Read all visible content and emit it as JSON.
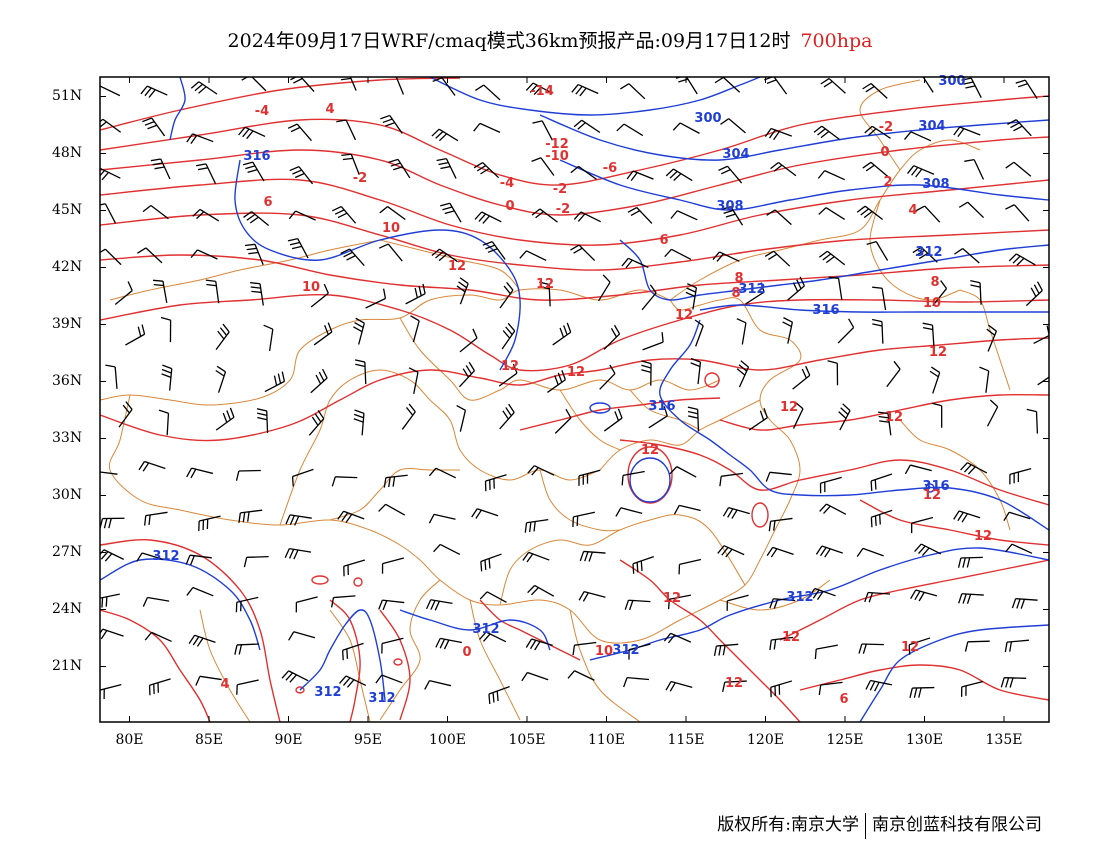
{
  "title": {
    "main": "2024年09月17日WRF/cmaq模式36km预报产品:09月17日12时",
    "level": "700hpa",
    "level_color": "#e01e1e"
  },
  "axes": {
    "lat_labels": [
      "51N",
      "48N",
      "45N",
      "42N",
      "39N",
      "36N",
      "33N",
      "30N",
      "27N",
      "24N",
      "21N"
    ],
    "lon_labels": [
      "80E",
      "85E",
      "90E",
      "95E",
      "100E",
      "105E",
      "110E",
      "115E",
      "120E",
      "125E",
      "130E",
      "135E"
    ],
    "lat_values": [
      51,
      48,
      45,
      42,
      39,
      36,
      33,
      30,
      27,
      24,
      21
    ],
    "lon_values": [
      80,
      85,
      90,
      95,
      100,
      105,
      110,
      115,
      120,
      125,
      130,
      135
    ]
  },
  "fields": {
    "geopotential_color": "#1f3ed6",
    "temperature_color": "#e03030",
    "border_color": "#d9883a",
    "wind_color": "#000000",
    "geopotential_labels": [
      "300",
      "300",
      "304",
      "304",
      "308",
      "308",
      "312",
      "312",
      "316",
      "316",
      "316",
      "316",
      "312",
      "312",
      "312",
      "312",
      "312",
      "312"
    ],
    "temperature_labels": [
      "-14",
      "-12",
      "-10",
      "-6",
      "-4",
      "-2",
      "-2",
      "0",
      "0",
      "-2",
      "2",
      "-4",
      "4",
      "-2",
      "4",
      "6",
      "6",
      "8",
      "8",
      "8",
      "10",
      "10",
      "10",
      "12",
      "12",
      "12",
      "12",
      "12",
      "12",
      "12",
      "12",
      "12",
      "12",
      "12",
      "12",
      "12",
      "6",
      "4",
      "0",
      "12",
      "12",
      "10"
    ]
  },
  "footer": {
    "left": "版权所有:南京大学",
    "right": "南京创蓝科技有限公司"
  }
}
